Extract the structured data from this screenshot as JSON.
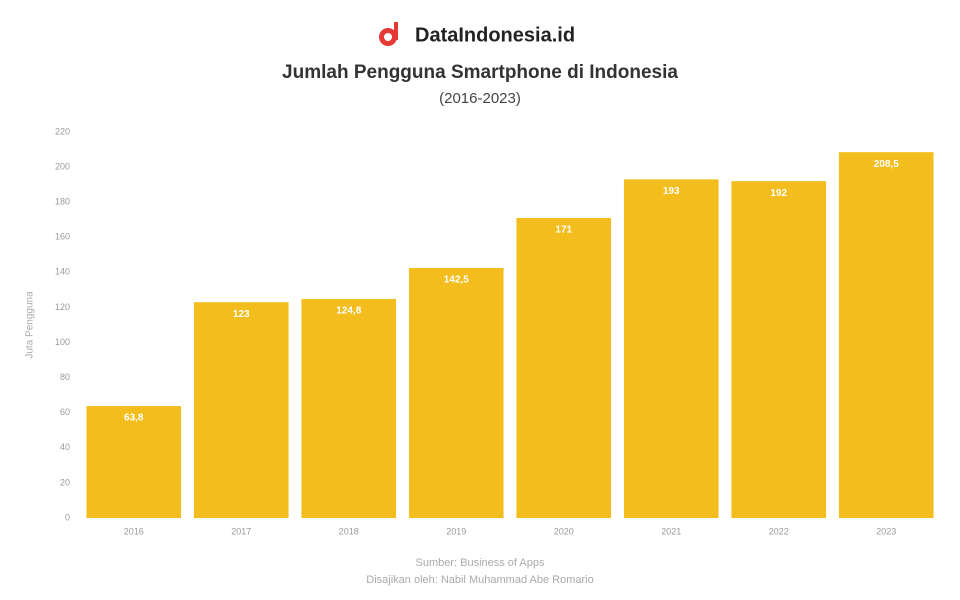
{
  "brand": "DataIndonesia.id",
  "chart_data": {
    "type": "bar",
    "title": "Jumlah Pengguna Smartphone di Indonesia",
    "subtitle": "(2016-2023)",
    "y_label": "Juta Pengguna",
    "source": "Sumber: Business of Apps",
    "credit": "Disajikan oleh: Nabil Muhammad Abe Romario",
    "categories": [
      "2016",
      "2017",
      "2018",
      "2019",
      "2020",
      "2021",
      "2022",
      "2023"
    ],
    "values": [
      63.8,
      123,
      124.8,
      142.5,
      171,
      193,
      192,
      208.5
    ],
    "value_labels": [
      "63,8",
      "123",
      "124,8",
      "142,5",
      "171",
      "193",
      "192",
      "208,5"
    ],
    "color": "#f2bd1d",
    "ylim": [
      0,
      220
    ],
    "yticks": [
      0,
      20,
      40,
      60,
      80,
      100,
      120,
      140,
      160,
      180,
      200,
      220
    ],
    "grid": false
  }
}
